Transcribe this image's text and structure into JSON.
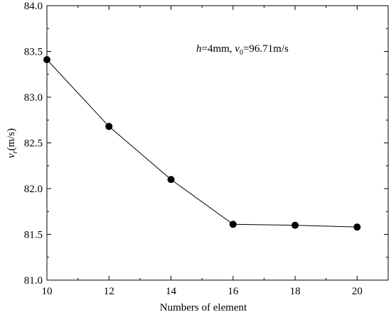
{
  "chart_data": {
    "type": "line",
    "xlabel": "Numbers of element",
    "ylabel": {
      "var": "v",
      "sub": "r",
      "unit": "(m/s)"
    },
    "annotation": {
      "h_var": "h",
      "h_val": "=4mm, ",
      "v_var": "v",
      "v_sub": "0",
      "v_val": "=96.71m/s"
    },
    "xlim": [
      10,
      21
    ],
    "ylim": [
      81.0,
      84.0
    ],
    "xticks": [
      10,
      12,
      14,
      16,
      18,
      20
    ],
    "xtick_labels": [
      "10",
      "12",
      "14",
      "16",
      "18",
      "20"
    ],
    "yticks": [
      81.0,
      81.5,
      82.0,
      82.5,
      83.0,
      83.5,
      84.0
    ],
    "ytick_labels": [
      "81.0",
      "81.5",
      "82.0",
      "82.5",
      "83.0",
      "83.5",
      "84.0"
    ],
    "x": [
      10,
      12,
      14,
      16,
      18,
      20
    ],
    "y": [
      83.41,
      82.68,
      82.1,
      81.61,
      81.6,
      81.58
    ],
    "grid": false,
    "marker": "filled-circle",
    "color": "#000000"
  }
}
